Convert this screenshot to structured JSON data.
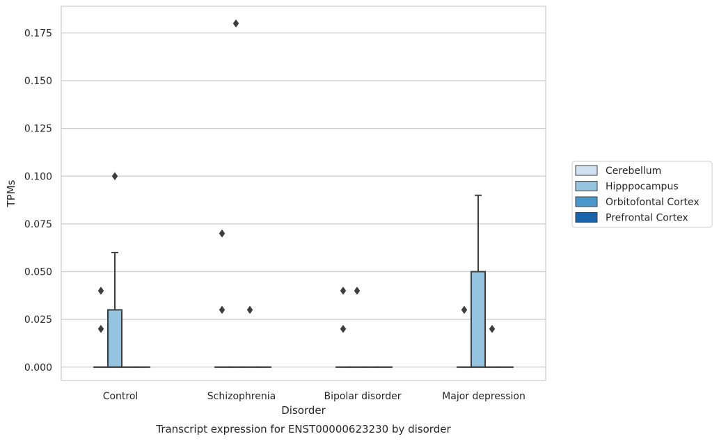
{
  "chart_data": {
    "type": "box",
    "title": "",
    "caption": "Transcript expression for ENST00000623230 by disorder",
    "xlabel": "Disorder",
    "ylabel": "TPMs",
    "categories": [
      "Control",
      "Schizophrenia",
      "Bipolar disorder",
      "Major depression"
    ],
    "ylim": [
      -0.007,
      0.189
    ],
    "yticks": [
      0.0,
      0.025,
      0.05,
      0.075,
      0.1,
      0.125,
      0.15,
      0.175
    ],
    "ytick_labels": [
      "0.000",
      "0.025",
      "0.050",
      "0.075",
      "0.100",
      "0.125",
      "0.150",
      "0.175"
    ],
    "grid": "horizontal",
    "legend_position": "right",
    "series": [
      {
        "name": "Cerebellum",
        "color": "#d0e1f2",
        "boxes": [
          {
            "q1": 0,
            "median": 0,
            "q3": 0,
            "whisker_low": 0,
            "whisker_high": 0,
            "outliers": [
              0.02,
              0.04
            ]
          },
          {
            "q1": 0,
            "median": 0,
            "q3": 0,
            "whisker_low": 0,
            "whisker_high": 0,
            "outliers": [
              0.03,
              0.07
            ]
          },
          {
            "q1": 0,
            "median": 0,
            "q3": 0,
            "whisker_low": 0,
            "whisker_high": 0,
            "outliers": [
              0.02,
              0.04
            ]
          },
          {
            "q1": 0,
            "median": 0,
            "q3": 0,
            "whisker_low": 0,
            "whisker_high": 0,
            "outliers": [
              0.03
            ]
          }
        ]
      },
      {
        "name": "Hipppocampus",
        "color": "#94c4df",
        "boxes": [
          {
            "q1": 0,
            "median": 0,
            "q3": 0.03,
            "whisker_low": 0,
            "whisker_high": 0.06,
            "outliers": [
              0.1
            ]
          },
          {
            "q1": 0,
            "median": 0,
            "q3": 0,
            "whisker_low": 0,
            "whisker_high": 0,
            "outliers": [
              0.18
            ]
          },
          {
            "q1": 0,
            "median": 0,
            "q3": 0,
            "whisker_low": 0,
            "whisker_high": 0,
            "outliers": [
              0.04
            ]
          },
          {
            "q1": 0,
            "median": 0,
            "q3": 0.05,
            "whisker_low": 0,
            "whisker_high": 0.09,
            "outliers": []
          }
        ]
      },
      {
        "name": "Orbitofontal Cortex",
        "color": "#4a98c9",
        "boxes": [
          {
            "q1": 0,
            "median": 0,
            "q3": 0,
            "whisker_low": 0,
            "whisker_high": 0,
            "outliers": []
          },
          {
            "q1": 0,
            "median": 0,
            "q3": 0,
            "whisker_low": 0,
            "whisker_high": 0,
            "outliers": [
              0.03
            ]
          },
          {
            "q1": 0,
            "median": 0,
            "q3": 0,
            "whisker_low": 0,
            "whisker_high": 0,
            "outliers": []
          },
          {
            "q1": 0,
            "median": 0,
            "q3": 0,
            "whisker_low": 0,
            "whisker_high": 0,
            "outliers": [
              0.02
            ]
          }
        ]
      },
      {
        "name": "Prefrontal Cortex",
        "color": "#1764ab",
        "boxes": [
          {
            "q1": 0,
            "median": 0,
            "q3": 0,
            "whisker_low": 0,
            "whisker_high": 0,
            "outliers": []
          },
          {
            "q1": 0,
            "median": 0,
            "q3": 0,
            "whisker_low": 0,
            "whisker_high": 0,
            "outliers": []
          },
          {
            "q1": 0,
            "median": 0,
            "q3": 0,
            "whisker_low": 0,
            "whisker_high": 0,
            "outliers": []
          },
          {
            "q1": 0,
            "median": 0,
            "q3": 0,
            "whisker_low": 0,
            "whisker_high": 0,
            "outliers": []
          }
        ]
      }
    ]
  }
}
